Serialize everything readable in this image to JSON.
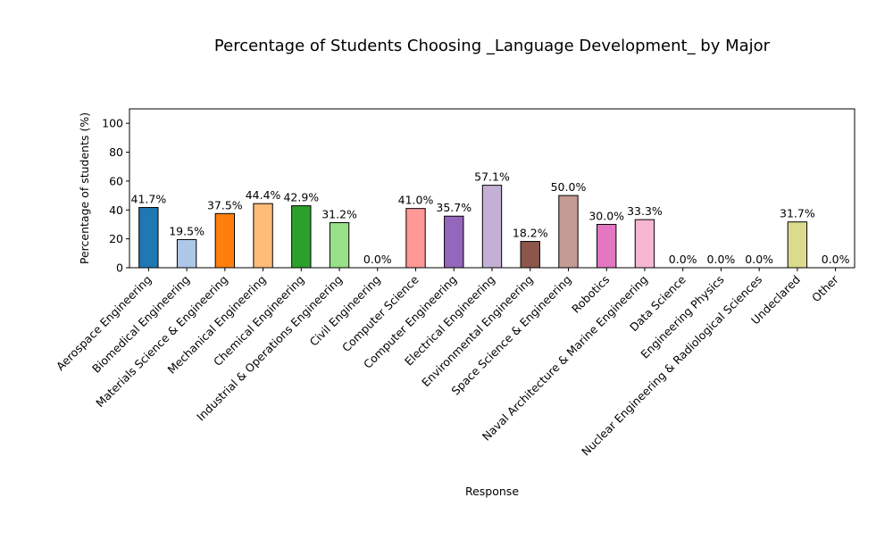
{
  "chart_data": {
    "type": "bar",
    "title": "Percentage of Students Choosing _Language Development_ by Major",
    "xlabel": "Response",
    "ylabel": "Percentage of students (%)",
    "ylim": [
      0,
      110
    ],
    "yticks": [
      "0",
      "20",
      "40",
      "60",
      "80",
      "100"
    ],
    "grid": false,
    "legend": "none",
    "categories": [
      "Aerospace Engineering",
      "Biomedical Engineering",
      "Materials Science & Engineering",
      "Mechanical Engineering",
      "Chemical Engineering",
      "Industrial & Operations Engineering",
      "Civil Engineering",
      "Computer Science",
      "Computer Engineering",
      "Electrical Engineering",
      "Environmental Engineering",
      "Space Science & Engineering",
      "Robotics",
      "Naval Architecture & Marine Engineering",
      "Data Science",
      "Engineering Physics",
      "Nuclear Engineering & Radiological Sciences",
      "Undeclared",
      "Other"
    ],
    "values": [
      41.7,
      19.5,
      37.5,
      44.4,
      42.9,
      31.2,
      0.0,
      41.0,
      35.7,
      57.1,
      18.2,
      50.0,
      30.0,
      33.3,
      0.0,
      0.0,
      0.0,
      31.7,
      0.0
    ],
    "value_labels": [
      "41.7%",
      "19.5%",
      "37.5%",
      "44.4%",
      "42.9%",
      "31.2%",
      "0.0%",
      "41.0%",
      "35.7%",
      "57.1%",
      "18.2%",
      "50.0%",
      "30.0%",
      "33.3%",
      "0.0%",
      "0.0%",
      "0.0%",
      "31.7%",
      "0.0%"
    ],
    "colors": [
      "#1f77b4",
      "#aec7e8",
      "#ff7f0e",
      "#ffbb78",
      "#2ca02c",
      "#98df8a",
      "#d62728",
      "#ff9896",
      "#9467bd",
      "#c5b0d5",
      "#8c564b",
      "#c49c94",
      "#e377c2",
      "#f7b6d2",
      "#7f7f7f",
      "#c7c7c7",
      "#bcbd22",
      "#dbdb8d",
      "#17becf"
    ],
    "bar_edge_color": "#000000"
  }
}
